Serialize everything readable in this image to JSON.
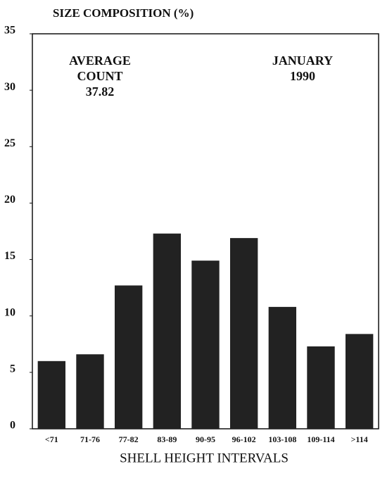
{
  "chart_data": {
    "type": "bar",
    "title": "SIZE COMPOSITION (%)",
    "x_label": "SHELL HEIGHT INTERVALS",
    "annotations": [
      [
        "AVERAGE",
        "COUNT",
        "37.82"
      ],
      [
        "JANUARY",
        "1990"
      ]
    ],
    "categories": [
      "<71",
      "71-76",
      "77-82",
      "83-89",
      "90-95",
      "96-102",
      "103-108",
      "109-114",
      ">114"
    ],
    "values": [
      6.0,
      6.6,
      12.7,
      17.3,
      14.9,
      16.9,
      10.8,
      7.3,
      8.4
    ],
    "color": "#222222",
    "ylim": [
      0,
      35
    ],
    "yticks": [
      0,
      5,
      10,
      15,
      20,
      25,
      30,
      35
    ],
    "grid": false
  }
}
